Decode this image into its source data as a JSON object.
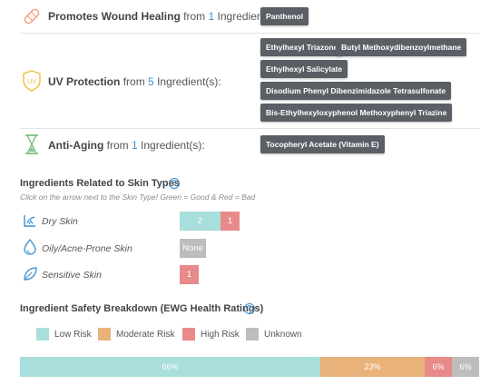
{
  "benefits": [
    {
      "name": "Promotes Wound Healing",
      "from_prefix": "from",
      "count": "1",
      "from_suffix": "Ingredient(s):",
      "icon": "bandage-icon",
      "ingredients": [
        "Panthenol"
      ]
    },
    {
      "name": "UV Protection",
      "from_prefix": "from",
      "count": "5",
      "from_suffix": "Ingredient(s):",
      "icon": "uv-shield-icon",
      "icon_text": "UV",
      "ingredients": [
        "Ethylhexyl Triazone",
        "Butyl Methoxydibenzoylmethane",
        "Ethylhexyl Salicylate",
        "Disodium Phenyl Dibenzimidazole Tetrasulfonate",
        "Bis-Ethylhexyloxyphenol Methoxyphenyl Triazine"
      ]
    },
    {
      "name": "Anti-Aging",
      "from_prefix": "from",
      "count": "1",
      "from_suffix": "Ingredient(s):",
      "icon": "hourglass-icon",
      "ingredients": [
        "Tocopheryl Acetate (Vitamin E)"
      ]
    }
  ],
  "skin_types": {
    "title": "Ingredients Related to Skin Types",
    "help": "?",
    "hint": "Click on the arrow next to the Skin Type! Green = Good & Red = Bad",
    "rows": [
      {
        "label": "Dry Skin",
        "icon": "dry-skin-icon",
        "good": "2",
        "bad": "1"
      },
      {
        "label": "Oily/Acne-Prone Skin",
        "icon": "droplet-icon",
        "none": "None"
      },
      {
        "label": "Sensitive Skin",
        "icon": "leaf-icon",
        "bad": "1"
      }
    ]
  },
  "safety": {
    "title": "Ingredient Safety Breakdown (EWG Health Ratings)",
    "help": "?",
    "legend": [
      {
        "label": "Low Risk",
        "color": "#a8dedc"
      },
      {
        "label": "Moderate Risk",
        "color": "#e8b27a"
      },
      {
        "label": "High Risk",
        "color": "#e88a8a"
      },
      {
        "label": "Unknown",
        "color": "#bdbdbd"
      }
    ],
    "bar": [
      {
        "label": "66%",
        "value": 66,
        "color": "#a8dedc"
      },
      {
        "label": "23%",
        "value": 23,
        "color": "#e8b27a"
      },
      {
        "label": "6%",
        "value": 6,
        "color": "#e88a8a"
      },
      {
        "label": "6%",
        "value": 6,
        "color": "#bdbdbd"
      }
    ]
  },
  "colors": {
    "accent": "#3a8fd0",
    "icon_orange": "#f2a07b",
    "icon_yellow": "#e8c23a",
    "icon_green": "#7cc08a",
    "good": "#a8dedc",
    "bad": "#e88a8a",
    "none": "#bdbdbd",
    "tag": "#5a5f66"
  }
}
